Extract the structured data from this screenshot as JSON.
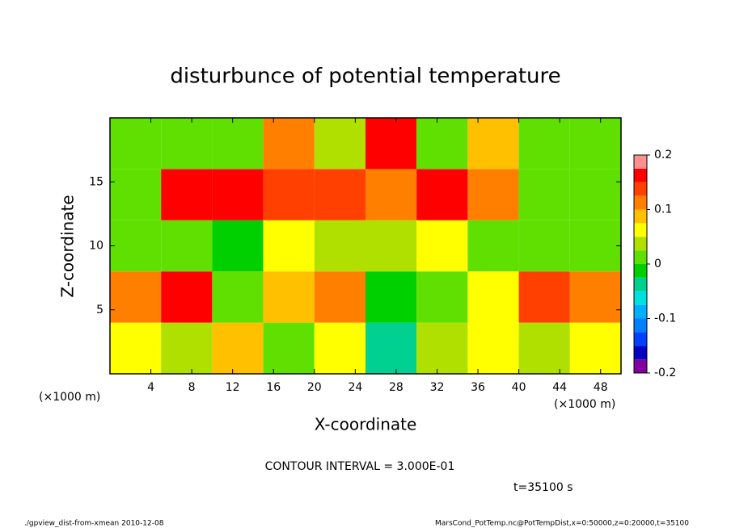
{
  "chart_data": {
    "type": "heatmap",
    "title": "disturbunce of potential temperature",
    "x_label": "X-coordinate",
    "y_label": "Z-coordinate",
    "x_unit": "(×1000 m)",
    "contour_note": "CONTOUR INTERVAL = 3.000E-01",
    "time_note": "t=35100 s",
    "footer_left": "./gpview_dist-from-xmean  2010-12-08",
    "footer_right": "MarsCond_PotTemp.nc@PotTempDist,x=0:50000,z=0:20000,t=35100",
    "xlim": [
      0,
      50
    ],
    "xticks": [
      4,
      8,
      12,
      16,
      20,
      24,
      28,
      32,
      36,
      40,
      44,
      48
    ],
    "ylim": [
      0,
      20
    ],
    "yticks": [
      5,
      10,
      15
    ],
    "field": {
      "x": [
        2.5,
        7.5,
        12.5,
        17.5,
        22.5,
        27.5,
        32.5,
        37.5,
        42.5,
        47.5
      ],
      "z": [
        2,
        6,
        10,
        14,
        18
      ],
      "values": [
        [
          0.05,
          0.03,
          0.08,
          0.02,
          0.06,
          -0.05,
          0.04,
          0.07,
          0.03,
          0.05
        ],
        [
          0.12,
          0.15,
          0.02,
          0.08,
          0.11,
          -0.02,
          0.01,
          0.05,
          0.13,
          0.1
        ],
        [
          0.0,
          0.02,
          -0.01,
          0.05,
          0.03,
          0.04,
          0.06,
          0.02,
          0.0,
          0.01
        ],
        [
          0.01,
          0.16,
          0.15,
          0.14,
          0.13,
          0.12,
          0.17,
          0.1,
          0.02,
          0.0
        ],
        [
          0.0,
          0.02,
          0.01,
          0.12,
          0.03,
          0.15,
          0.02,
          0.08,
          0.01,
          0.0
        ]
      ]
    },
    "colorbar": {
      "lim": [
        -0.2,
        0.2
      ],
      "ticks": [
        -0.2,
        -0.1,
        0,
        0.1,
        0.2
      ],
      "levels": [
        -0.2,
        -0.175,
        -0.15,
        -0.125,
        -0.1,
        -0.075,
        -0.05,
        -0.025,
        0,
        0.025,
        0.05,
        0.075,
        0.1,
        0.125,
        0.15,
        0.175,
        0.2
      ],
      "colors": [
        "#8000a0",
        "#0000c0",
        "#0040ff",
        "#0080ff",
        "#00b0ff",
        "#00e0e0",
        "#00d090",
        "#00d000",
        "#60e000",
        "#b0e000",
        "#ffff00",
        "#ffc000",
        "#ff8000",
        "#ff4000",
        "#ff0000",
        "#ff9090"
      ]
    }
  }
}
